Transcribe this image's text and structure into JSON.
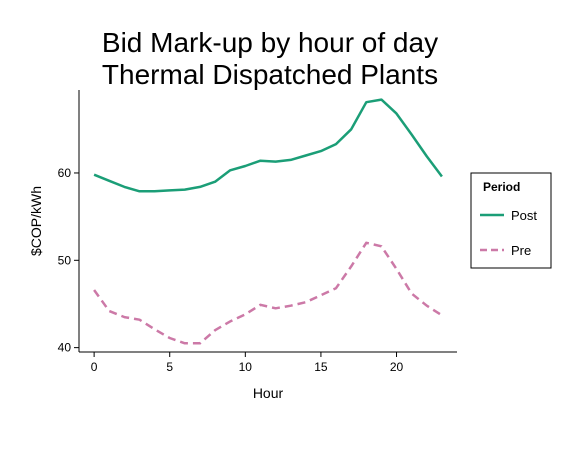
{
  "chart_data": {
    "type": "line",
    "title": [
      "Bid Mark-up by hour of day",
      "Thermal Dispatched Plants"
    ],
    "xlabel": "Hour",
    "ylabel": "$COP/kWh",
    "xlim": [
      -1,
      24
    ],
    "ylim": [
      39.5,
      69.5
    ],
    "x_ticks": [
      0,
      5,
      10,
      15,
      20
    ],
    "y_ticks": [
      40,
      50,
      60
    ],
    "grid": false,
    "legend": {
      "title": "Period",
      "placement": "right"
    },
    "x": [
      0,
      1,
      2,
      3,
      4,
      5,
      6,
      7,
      8,
      9,
      10,
      11,
      12,
      13,
      14,
      15,
      16,
      17,
      18,
      19,
      20,
      21,
      22,
      23
    ],
    "series": [
      {
        "name": "Post",
        "color": "#1b9e77",
        "dash": "solid",
        "values": [
          59.8,
          59.1,
          58.4,
          57.9,
          57.9,
          58.0,
          58.1,
          58.4,
          59.0,
          60.3,
          60.8,
          61.4,
          61.3,
          61.5,
          62.0,
          62.5,
          63.3,
          65.0,
          68.1,
          68.4,
          66.8,
          64.4,
          61.9,
          59.6
        ]
      },
      {
        "name": "Pre",
        "color": "#cc79a7",
        "dash": "dashed",
        "values": [
          46.6,
          44.2,
          43.5,
          43.2,
          42.1,
          41.1,
          40.5,
          40.5,
          42.0,
          43.0,
          43.8,
          44.9,
          44.5,
          44.8,
          45.2,
          46.0,
          46.8,
          49.3,
          52.0,
          51.6,
          49.0,
          46.2,
          44.8,
          43.7
        ]
      }
    ]
  }
}
